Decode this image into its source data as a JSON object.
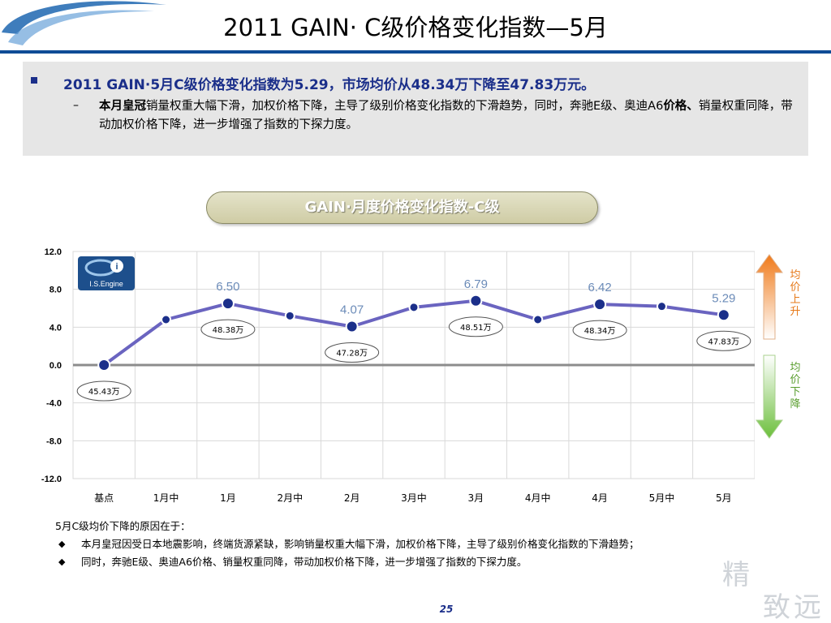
{
  "title": "2011 GAIN· C级价格变化指数—5月",
  "summary": {
    "main": "2011 GAIN·5月C级价格变化指数为5.29，市场均价从48.34万下降至47.83万元。",
    "sub_bold1": "本月皇冠",
    "sub_text1": "销量权重大幅下滑，加权价格下降，主导了级别价格变化指数的下滑趋势，同时，奔驰E级、奥迪A6",
    "sub_bold2": "价格、",
    "sub_text2": "销量权重同降，带动加权价格下降，进一步增强了指数的下探力度。"
  },
  "chart_title": "GAIN·月度价格变化指数-C级",
  "logo_text": "I.S.Engine",
  "arrow_up_label": "均价上升",
  "arrow_down_label": "均价下降",
  "chart_data": {
    "type": "line",
    "title": "GAIN·月度价格变化指数-C级",
    "categories": [
      "基点",
      "1月中",
      "1月",
      "2月中",
      "2月",
      "3月中",
      "3月",
      "4月中",
      "4月",
      "5月中",
      "5月"
    ],
    "values": [
      0.0,
      4.8,
      6.5,
      5.2,
      4.07,
      6.1,
      6.79,
      4.8,
      6.42,
      6.2,
      5.29
    ],
    "value_labels": [
      "",
      "",
      "6.50",
      "",
      "4.07",
      "",
      "6.79",
      "",
      "6.42",
      "",
      "5.29"
    ],
    "price_callouts": [
      "45.43万",
      "",
      "48.38万",
      "",
      "47.28万",
      "",
      "48.51万",
      "",
      "48.34万",
      "",
      "47.83万"
    ],
    "ylim": [
      -12.0,
      12.0
    ],
    "yticks": [
      "12.0",
      "8.0",
      "4.0",
      "0.0",
      "-4.0",
      "-8.0",
      "-12.0"
    ],
    "ytick_values": [
      12,
      8,
      4,
      0,
      -4,
      -8,
      -12
    ],
    "grid": true,
    "colors": {
      "line": "#6a64c0",
      "marker": "#1b2f8a",
      "label": "#6b8bb8",
      "zero": "#8c8c8c"
    }
  },
  "reasons": {
    "head": "5月C级均价下降的原因在于：",
    "items": [
      "本月皇冠因受日本地震影响，终端货源紧缺，影响销量权重大幅下滑，加权价格下降，主导了级别价格变化指数的下滑趋势；",
      "同时，奔驰E级、奥迪A6价格、销量权重同降，带动加权价格下降，进一步增强了指数的下探力度。"
    ]
  },
  "page_number": "25",
  "watermark_text": "精致远"
}
